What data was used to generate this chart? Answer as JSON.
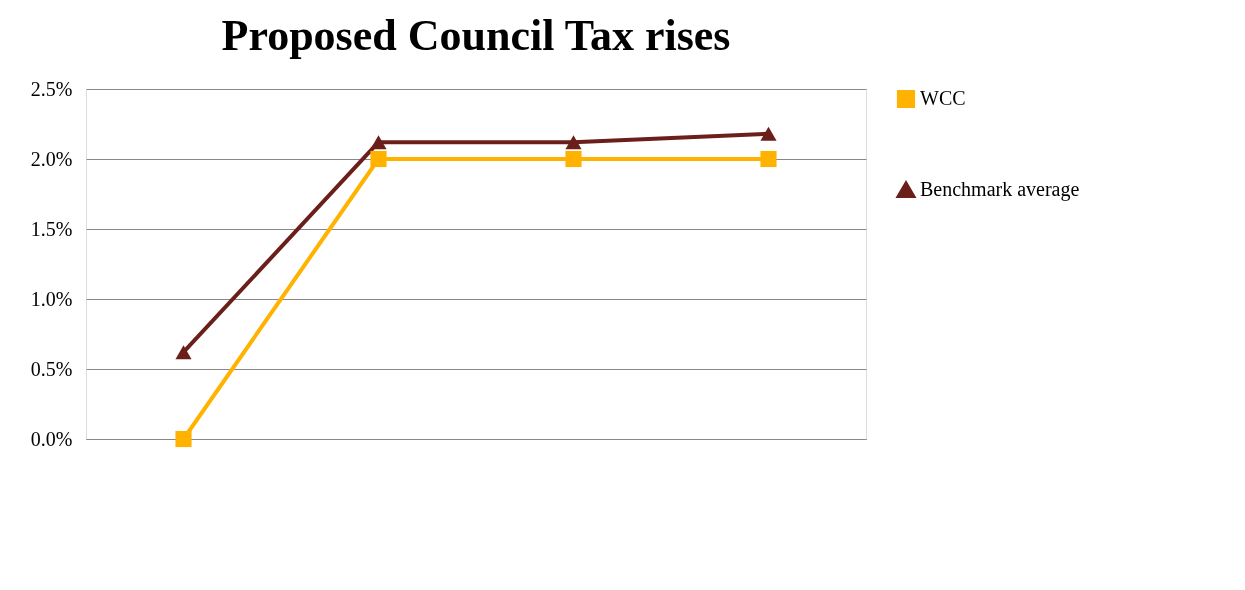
{
  "chart_data": {
    "type": "line",
    "title": "Proposed Council Tax rises",
    "categories": [
      null,
      null,
      null,
      null
    ],
    "series": [
      {
        "name": "WCC",
        "color": "#ffb300",
        "marker": "square",
        "values": [
          0.0,
          2.0,
          2.0,
          2.0
        ]
      },
      {
        "name": "Benchmark average",
        "color": "#6b1f1a",
        "marker": "triangle",
        "values": [
          0.62,
          2.12,
          2.12,
          2.18
        ]
      }
    ],
    "ylim": [
      0,
      2.5
    ],
    "yticks": [
      {
        "value": 0,
        "label": "0.0%"
      },
      {
        "value": 0.5,
        "label": "0.5%"
      },
      {
        "value": 1.0,
        "label": "1.0%"
      },
      {
        "value": 1.5,
        "label": "1.5%"
      },
      {
        "value": 2.0,
        "label": "2.0%"
      },
      {
        "value": 2.5,
        "label": "2.5%"
      }
    ],
    "grid": "y",
    "legend": "right",
    "tick_labels": "y",
    "line_style": "solid"
  }
}
